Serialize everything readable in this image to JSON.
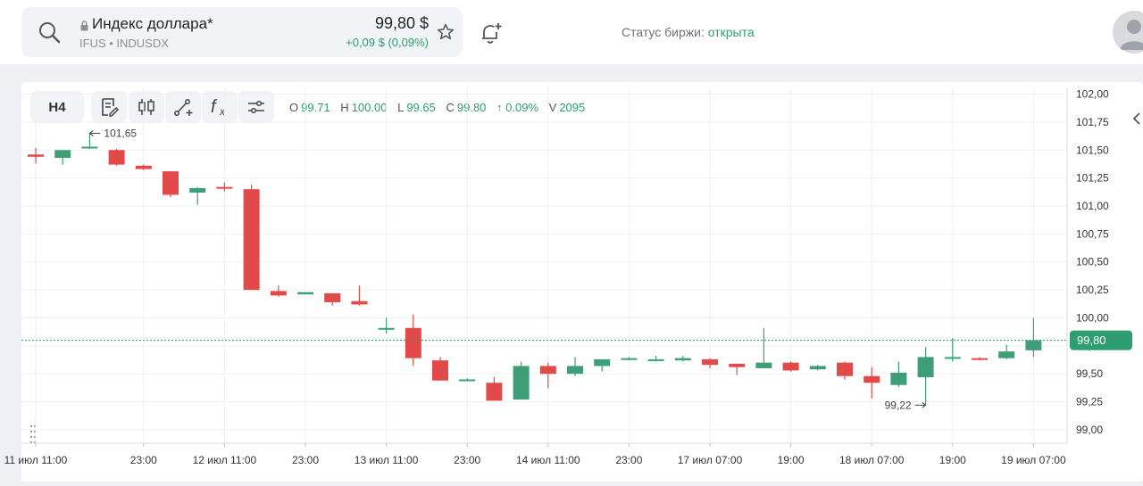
{
  "header": {
    "ticker_name": "Индекс доллара*",
    "ticker_exchange": "IFUS • INDUSDX",
    "price": "99,80 $",
    "change": "+0,09 $ (0,09%)",
    "status_label": "Статус биржи: ",
    "status_value": "открыта"
  },
  "toolbar": {
    "interval": "H4",
    "icons": [
      "notes-icon",
      "candles-icon",
      "drawing-icon",
      "function-icon",
      "settings-sliders-icon"
    ]
  },
  "ohlc": {
    "o_label": "O",
    "o": "99.71",
    "h_label": "H",
    "h": "100.00",
    "l_label": "L",
    "l": "99.65",
    "c_label": "C",
    "c": "99.80",
    "change": "↑ 0.09%",
    "v_label": "V",
    "v": "2095"
  },
  "colors": {
    "up": "#3d9e78",
    "down": "#e24a4a",
    "accent": "#2f9e6e",
    "grid": "#eef0f2"
  },
  "chart_data": {
    "type": "candlestick",
    "y_ticks": [
      "102,00",
      "101,75",
      "101,50",
      "101,25",
      "101,00",
      "100,75",
      "100,50",
      "100,25",
      "100,00",
      "99,75",
      "99,50",
      "99,25",
      "99,00"
    ],
    "ylim": [
      98.88,
      102.06
    ],
    "x_ticks": [
      {
        "index": 0,
        "label": "11 июл 11:00"
      },
      {
        "index": 4,
        "label": "23:00"
      },
      {
        "index": 7,
        "label": "12 июл 11:00"
      },
      {
        "index": 10,
        "label": "23:00"
      },
      {
        "index": 13,
        "label": "13 июл 11:00"
      },
      {
        "index": 16,
        "label": "23:00"
      },
      {
        "index": 19,
        "label": "14 июл 11:00"
      },
      {
        "index": 22,
        "label": "23:00"
      },
      {
        "index": 25,
        "label": "17 июл 07:00"
      },
      {
        "index": 28,
        "label": "19:00"
      },
      {
        "index": 31,
        "label": "18 июл 07:00"
      },
      {
        "index": 34,
        "label": "19:00"
      },
      {
        "index": 37,
        "label": "19 июл 07:00"
      }
    ],
    "candles": [
      {
        "o": 101.46,
        "h": 101.52,
        "l": 101.38,
        "c": 101.44
      },
      {
        "o": 101.43,
        "h": 101.49,
        "l": 101.37,
        "c": 101.5
      },
      {
        "o": 101.52,
        "h": 101.65,
        "l": 101.51,
        "c": 101.53
      },
      {
        "o": 101.5,
        "h": 101.51,
        "l": 101.36,
        "c": 101.37
      },
      {
        "o": 101.36,
        "h": 101.37,
        "l": 101.32,
        "c": 101.33
      },
      {
        "o": 101.31,
        "h": 101.31,
        "l": 101.08,
        "c": 101.1
      },
      {
        "o": 101.12,
        "h": 101.17,
        "l": 101.01,
        "c": 101.16
      },
      {
        "o": 101.17,
        "h": 101.21,
        "l": 101.13,
        "c": 101.16
      },
      {
        "o": 101.15,
        "h": 101.19,
        "l": 100.25,
        "c": 100.25
      },
      {
        "o": 100.24,
        "h": 100.29,
        "l": 100.19,
        "c": 100.2
      },
      {
        "o": 100.21,
        "h": 100.23,
        "l": 100.21,
        "c": 100.23
      },
      {
        "o": 100.22,
        "h": 100.22,
        "l": 100.11,
        "c": 100.14
      },
      {
        "o": 100.15,
        "h": 100.29,
        "l": 100.11,
        "c": 100.12
      },
      {
        "o": 99.91,
        "h": 100.0,
        "l": 99.86,
        "c": 99.91
      },
      {
        "o": 99.91,
        "h": 100.03,
        "l": 99.57,
        "c": 99.64
      },
      {
        "o": 99.62,
        "h": 99.65,
        "l": 99.44,
        "c": 99.44
      },
      {
        "o": 99.45,
        "h": 99.46,
        "l": 99.44,
        "c": 99.45
      },
      {
        "o": 99.42,
        "h": 99.47,
        "l": 99.26,
        "c": 99.26
      },
      {
        "o": 99.27,
        "h": 99.61,
        "l": 99.27,
        "c": 99.57
      },
      {
        "o": 99.57,
        "h": 99.6,
        "l": 99.37,
        "c": 99.5
      },
      {
        "o": 99.5,
        "h": 99.65,
        "l": 99.48,
        "c": 99.57
      },
      {
        "o": 99.57,
        "h": 99.63,
        "l": 99.52,
        "c": 99.63
      },
      {
        "o": 99.64,
        "h": 99.65,
        "l": 99.62,
        "c": 99.64
      },
      {
        "o": 99.63,
        "h": 99.66,
        "l": 99.61,
        "c": 99.63
      },
      {
        "o": 99.62,
        "h": 99.66,
        "l": 99.61,
        "c": 99.64
      },
      {
        "o": 99.63,
        "h": 99.64,
        "l": 99.55,
        "c": 99.58
      },
      {
        "o": 99.59,
        "h": 99.59,
        "l": 99.49,
        "c": 99.56
      },
      {
        "o": 99.55,
        "h": 99.91,
        "l": 99.55,
        "c": 99.6
      },
      {
        "o": 99.6,
        "h": 99.61,
        "l": 99.52,
        "c": 99.53
      },
      {
        "o": 99.54,
        "h": 99.58,
        "l": 99.53,
        "c": 99.57
      },
      {
        "o": 99.6,
        "h": 99.61,
        "l": 99.45,
        "c": 99.48
      },
      {
        "o": 99.48,
        "h": 99.56,
        "l": 99.28,
        "c": 99.42
      },
      {
        "o": 99.4,
        "h": 99.61,
        "l": 99.38,
        "c": 99.51
      },
      {
        "o": 99.47,
        "h": 99.74,
        "l": 99.22,
        "c": 99.65
      },
      {
        "o": 99.65,
        "h": 99.82,
        "l": 99.61,
        "c": 99.65
      },
      {
        "o": 99.64,
        "h": 99.65,
        "l": 99.62,
        "c": 99.63
      },
      {
        "o": 99.64,
        "h": 99.76,
        "l": 99.63,
        "c": 99.7
      },
      {
        "o": 99.71,
        "h": 100.0,
        "l": 99.65,
        "c": 99.8
      }
    ],
    "annotations": [
      {
        "label": "101,65",
        "index": 2,
        "value": 101.65,
        "side": "right"
      },
      {
        "label": "99,22",
        "index": 33,
        "value": 99.22,
        "side": "left"
      }
    ],
    "last_price": {
      "value": 99.8,
      "label": "99,80"
    }
  }
}
